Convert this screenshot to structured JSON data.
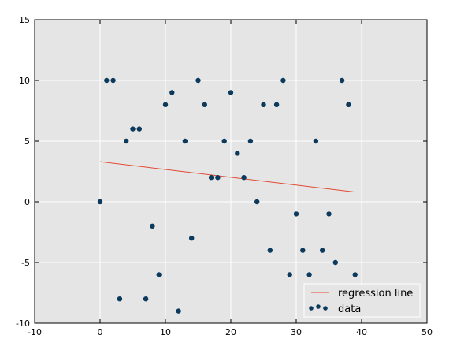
{
  "chart_data": {
    "type": "scatter",
    "title": "",
    "xlabel": "",
    "ylabel": "",
    "xlim": [
      -10,
      50
    ],
    "ylim": [
      -10,
      15
    ],
    "xticks": [
      -10,
      0,
      10,
      20,
      30,
      40,
      50
    ],
    "yticks": [
      -10,
      -5,
      0,
      5,
      10,
      15
    ],
    "grid": true,
    "legend_position": "bottom-right",
    "colors": {
      "background": "#e5e5e5",
      "grid": "#ffffff",
      "points": "#0b3a5c",
      "line": "#e24a33"
    },
    "series": [
      {
        "name": "regression line",
        "type": "line",
        "x": [
          0,
          39
        ],
        "y": [
          3.3,
          0.8
        ]
      },
      {
        "name": "data",
        "type": "scatter",
        "x": [
          0,
          1,
          2,
          3,
          4,
          5,
          6,
          7,
          8,
          9,
          10,
          11,
          12,
          13,
          14,
          15,
          16,
          17,
          18,
          19,
          20,
          21,
          22,
          23,
          24,
          25,
          26,
          27,
          28,
          29,
          30,
          31,
          32,
          33,
          34,
          35,
          36,
          37,
          38,
          39
        ],
        "y": [
          0,
          10,
          10,
          -8,
          5,
          6,
          6,
          -8,
          -2,
          -6,
          8,
          9,
          -9,
          5,
          -3,
          10,
          8,
          2,
          2,
          5,
          9,
          4,
          2,
          5,
          0,
          8,
          -4,
          8,
          10,
          -6,
          -1,
          -4,
          -6,
          5,
          -4,
          -1,
          -5,
          10,
          8,
          -6
        ]
      }
    ]
  }
}
